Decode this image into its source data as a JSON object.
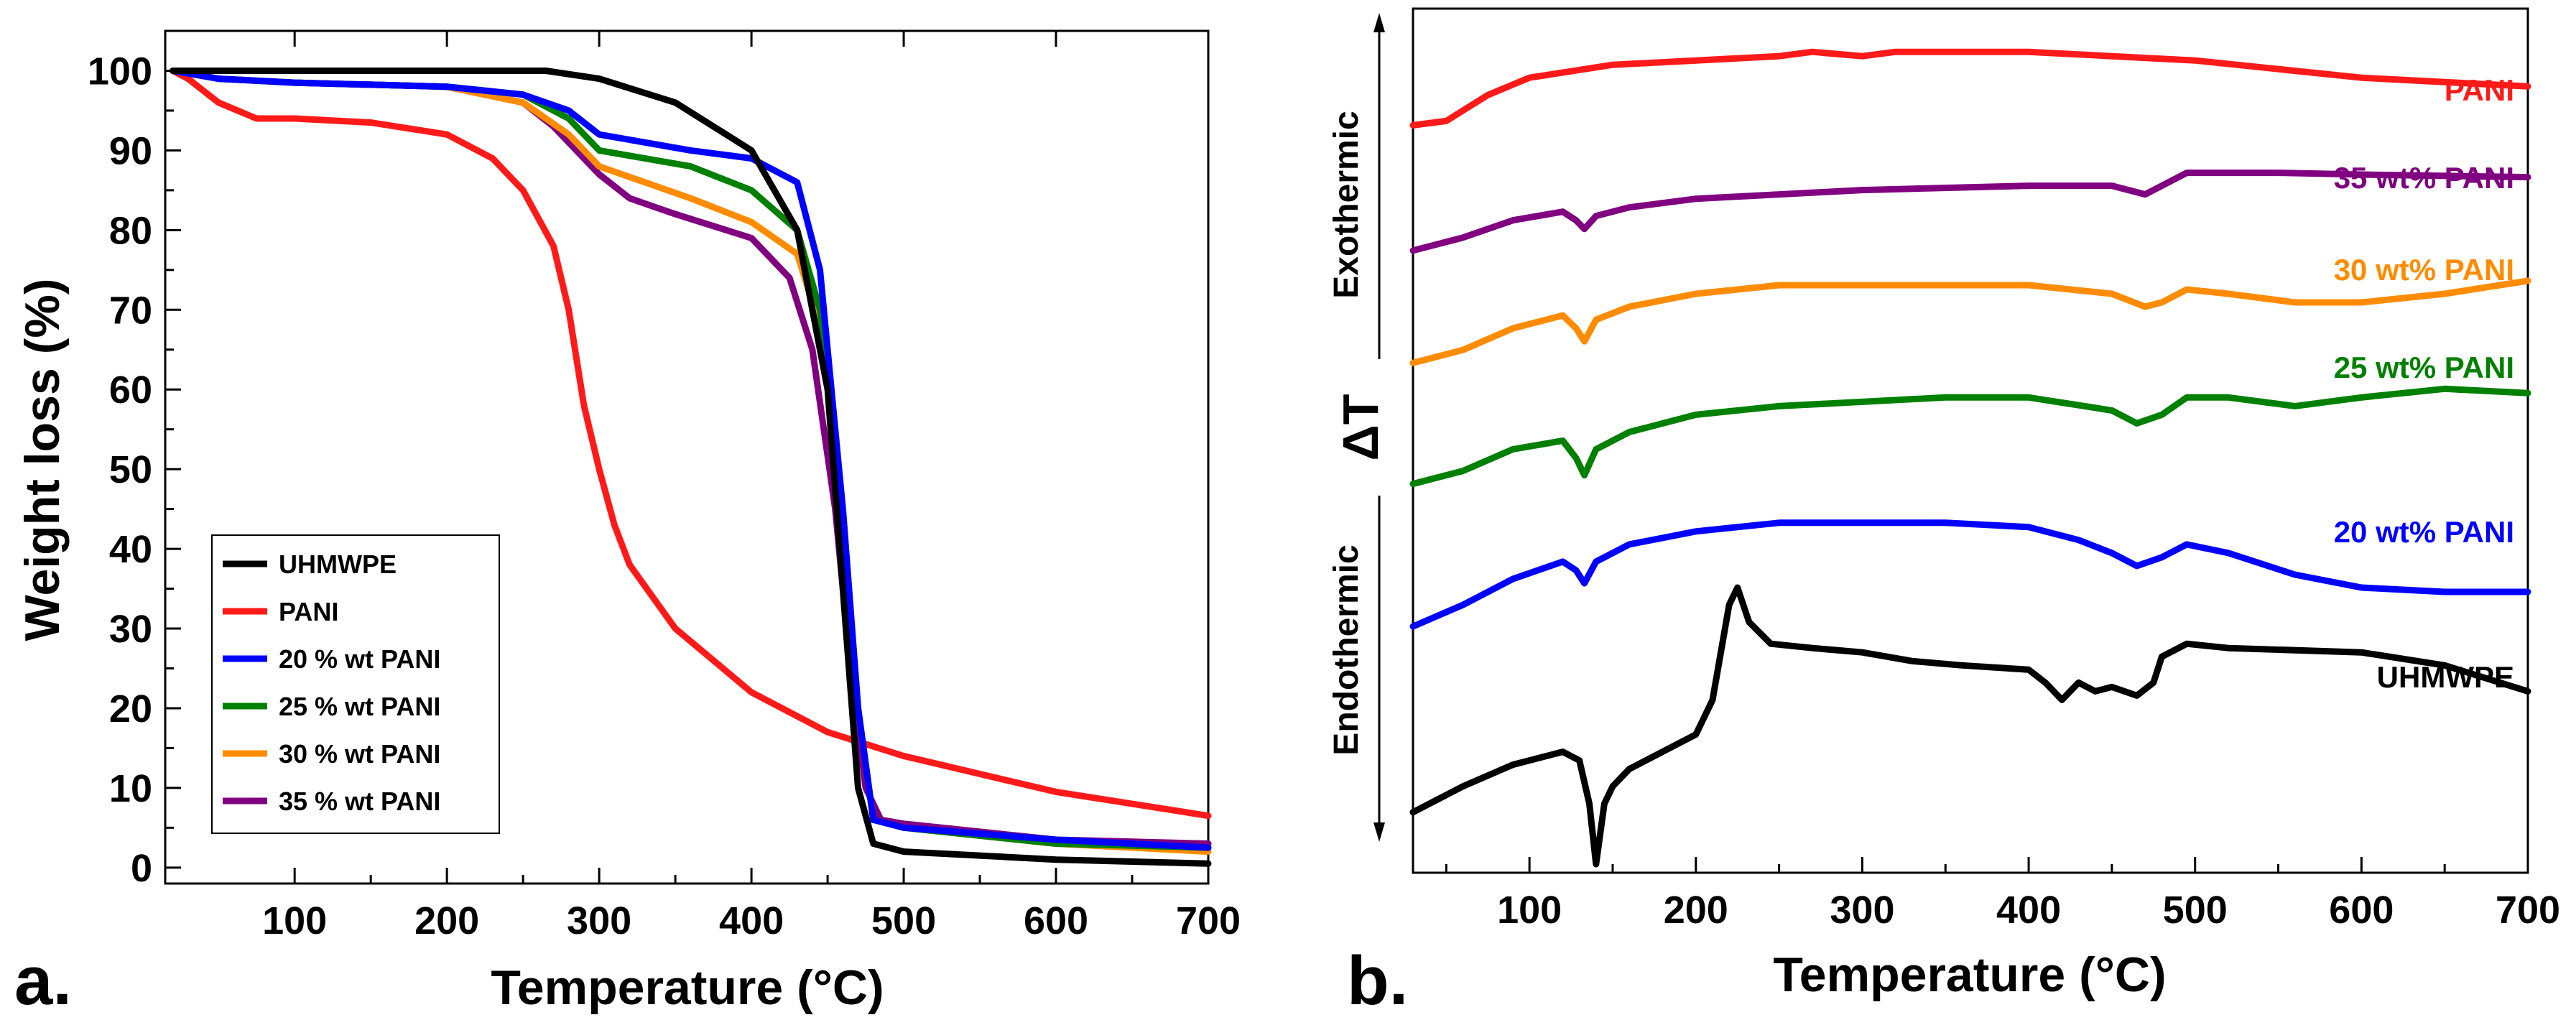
{
  "chart_data": [
    {
      "panel": "a.",
      "type": "line",
      "title": "",
      "xlabel": "Temperature (°C)",
      "ylabel": "Weight loss (%)",
      "xlim": [
        15,
        700
      ],
      "ylim": [
        -2,
        105
      ],
      "xticks": [
        100,
        200,
        300,
        400,
        500,
        600,
        700
      ],
      "yticks": [
        0,
        10,
        20,
        30,
        40,
        50,
        60,
        70,
        80,
        90,
        100
      ],
      "legend_position": "bottom-left",
      "series": [
        {
          "name": "UHMWPE",
          "color": "#000000",
          "x": [
            20,
            100,
            200,
            265,
            300,
            350,
            400,
            430,
            450,
            460,
            470,
            480,
            500,
            600,
            700
          ],
          "y": [
            100,
            100,
            100,
            100,
            99,
            96,
            90,
            80,
            60,
            35,
            10,
            3,
            2,
            1,
            0.5
          ]
        },
        {
          "name": "PANI",
          "color": "#ff1a1a",
          "x": [
            20,
            30,
            50,
            75,
            100,
            150,
            200,
            230,
            250,
            270,
            280,
            290,
            300,
            310,
            320,
            350,
            400,
            450,
            500,
            600,
            700
          ],
          "y": [
            100,
            99,
            96,
            94,
            94,
            93.5,
            92,
            89,
            85,
            78,
            70,
            58,
            50,
            43,
            38,
            30,
            22,
            17,
            14,
            9.5,
            6.5
          ]
        },
        {
          "name": "20 % wt PANI",
          "color": "#0000ff",
          "x": [
            20,
            50,
            100,
            200,
            250,
            280,
            300,
            330,
            360,
            400,
            430,
            445,
            460,
            470,
            480,
            500,
            600,
            700
          ],
          "y": [
            100,
            99,
            98.5,
            98,
            97,
            95,
            92,
            91,
            90,
            89,
            86,
            75,
            45,
            20,
            6,
            5,
            3.5,
            2.5
          ]
        },
        {
          "name": "25 % wt PANI",
          "color": "#008000",
          "x": [
            20,
            50,
            100,
            200,
            250,
            280,
            300,
            330,
            360,
            400,
            430,
            445,
            460,
            470,
            480,
            500,
            600,
            700
          ],
          "y": [
            100,
            99,
            98.5,
            98,
            97,
            94,
            90,
            89,
            88,
            85,
            80,
            70,
            45,
            20,
            6,
            5,
            3,
            2.5
          ]
        },
        {
          "name": "30 % wt PANI",
          "color": "#ff8c00",
          "x": [
            20,
            50,
            100,
            200,
            250,
            280,
            300,
            330,
            360,
            400,
            430,
            445,
            460,
            470,
            480,
            500,
            600,
            700
          ],
          "y": [
            100,
            99,
            98.5,
            98,
            96,
            92,
            88,
            86,
            84,
            81,
            77,
            68,
            45,
            20,
            6,
            5,
            3,
            2
          ]
        },
        {
          "name": "35 % wt PANI",
          "color": "#800080",
          "x": [
            20,
            50,
            100,
            200,
            250,
            270,
            290,
            300,
            320,
            350,
            400,
            425,
            440,
            455,
            465,
            475,
            485,
            500,
            600,
            700
          ],
          "y": [
            100,
            99,
            98.5,
            98,
            96,
            93,
            89,
            87,
            84,
            82,
            79,
            74,
            65,
            45,
            25,
            10,
            6,
            5.5,
            3.5,
            3
          ]
        }
      ]
    },
    {
      "panel": "b.",
      "type": "line",
      "title": "",
      "xlabel": "Temperature (°C)",
      "ylabel": "ΔT",
      "ylabel_top": "Exothermic",
      "ylabel_bottom": "Endothermic",
      "xlim": [
        30,
        700
      ],
      "ylim": [
        0,
        100
      ],
      "xticks": [
        100,
        200,
        300,
        400,
        500,
        600,
        700
      ],
      "yticks": [],
      "series": [
        {
          "name": "PANI",
          "color": "#ff1a1a",
          "x": [
            30,
            50,
            75,
            100,
            150,
            200,
            250,
            270,
            300,
            320,
            350,
            400,
            450,
            500,
            550,
            600,
            650,
            700
          ],
          "y": [
            86.5,
            87,
            90,
            92,
            93.5,
            94,
            94.5,
            95,
            94.5,
            95,
            95,
            95,
            94.5,
            94,
            93,
            92,
            91.5,
            91
          ]
        },
        {
          "name": "35 wt% PANI",
          "color": "#800080",
          "x": [
            30,
            60,
            90,
            120,
            128,
            133,
            140,
            160,
            200,
            300,
            400,
            450,
            470,
            480,
            495,
            550,
            600,
            700
          ],
          "y": [
            72,
            73.5,
            75.5,
            76.5,
            75.5,
            74.5,
            76,
            77,
            78,
            79,
            79.5,
            79.5,
            78.5,
            79.5,
            81,
            81,
            80.8,
            80.5
          ]
        },
        {
          "name": "30 wt% PANI",
          "color": "#ff8c00",
          "x": [
            30,
            60,
            90,
            120,
            128,
            133,
            140,
            160,
            200,
            250,
            300,
            400,
            450,
            470,
            480,
            495,
            520,
            560,
            600,
            650,
            700
          ],
          "y": [
            59,
            60.5,
            63,
            64.5,
            63,
            61.5,
            64,
            65.5,
            67,
            68,
            68,
            68,
            67,
            65.5,
            66,
            67.5,
            67,
            66,
            66,
            67,
            68.5
          ]
        },
        {
          "name": "25 wt% PANI",
          "color": "#008000",
          "x": [
            30,
            60,
            90,
            120,
            128,
            133,
            140,
            160,
            200,
            250,
            300,
            350,
            400,
            450,
            465,
            480,
            495,
            520,
            560,
            600,
            650,
            700
          ],
          "y": [
            45,
            46.5,
            49,
            50,
            48,
            46,
            49,
            51,
            53,
            54,
            54.5,
            55,
            55,
            53.5,
            52,
            53,
            55,
            55,
            54,
            55,
            56,
            55.5
          ]
        },
        {
          "name": "20 wt% PANI",
          "color": "#0000ff",
          "x": [
            30,
            60,
            90,
            120,
            128,
            133,
            140,
            160,
            200,
            250,
            300,
            350,
            400,
            430,
            450,
            465,
            480,
            495,
            520,
            560,
            600,
            650,
            700
          ],
          "y": [
            28.5,
            31,
            34,
            36,
            35,
            33.5,
            36,
            38,
            39.5,
            40.5,
            40.5,
            40.5,
            40,
            38.5,
            37,
            35.5,
            36.5,
            38,
            37,
            34.5,
            33,
            32.5,
            32.5
          ]
        },
        {
          "name": "UHMWPE",
          "color": "#000000",
          "x": [
            30,
            60,
            90,
            120,
            130,
            136,
            140,
            145,
            150,
            160,
            200,
            210,
            220,
            225,
            232,
            245,
            270,
            300,
            330,
            360,
            400,
            410,
            420,
            430,
            440,
            450,
            465,
            475,
            480,
            490,
            495,
            520,
            600,
            650,
            700
          ],
          "y": [
            7,
            10,
            12.5,
            14,
            13,
            8,
            1,
            8,
            10,
            12,
            16,
            20,
            31,
            33,
            29,
            26.5,
            26,
            25.5,
            24.5,
            24,
            23.5,
            22,
            20,
            22,
            21,
            21.5,
            20.5,
            22,
            25,
            26,
            26.5,
            26,
            25.5,
            24,
            21
          ]
        }
      ]
    }
  ]
}
